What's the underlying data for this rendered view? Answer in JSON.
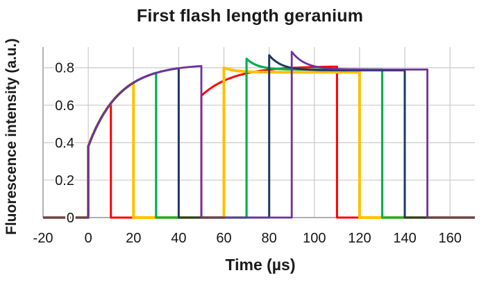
{
  "page": {
    "background": "#FFFFFF"
  },
  "chart_data": {
    "type": "line",
    "title": "First flash length geranium",
    "xlabel": "Time (µs)",
    "ylabel": "Fluorescence intensity (a.u.)",
    "xlim": [
      -20,
      171
    ],
    "ylim": [
      0,
      0.91
    ],
    "xticks": [
      -20,
      0,
      20,
      40,
      60,
      80,
      100,
      120,
      140,
      160
    ],
    "yticks": [
      0,
      0.2,
      0.4,
      0.6,
      0.8
    ],
    "grid": true,
    "legend_position": "none",
    "axis_color": "#A3A3A3",
    "grid_color": "#C9C9C9",
    "text_color": "#1A1A1A",
    "series": [
      {
        "name": "first-flash-10us",
        "color": "#FE0000",
        "width": 3,
        "segments": [
          {
            "shape": "flat",
            "t": [
              -20,
              0
            ],
            "v": 0
          },
          {
            "shape": "exp",
            "t": [
              0,
              10
            ],
            "v0": 0.38,
            "vinf": 0.82,
            "tau": 13.5
          },
          {
            "shape": "flat",
            "t": [
              10,
              50
            ],
            "v": 0
          },
          {
            "shape": "exp",
            "t": [
              50,
              110
            ],
            "v0": 0.65,
            "vinf": 0.808,
            "tau": 14
          },
          {
            "shape": "flat",
            "t": [
              110,
              171
            ],
            "v": 0
          }
        ]
      },
      {
        "name": "first-flash-20us",
        "color": "#FFC000",
        "width": 4,
        "segments": [
          {
            "shape": "flat",
            "t": [
              -20,
              0
            ],
            "v": 0
          },
          {
            "shape": "exp",
            "t": [
              0,
              20
            ],
            "v0": 0.38,
            "vinf": 0.82,
            "tau": 13.5
          },
          {
            "shape": "flat",
            "t": [
              20,
              60
            ],
            "v": 0
          },
          {
            "shape": "exp",
            "t": [
              60,
              120
            ],
            "v0": 0.8,
            "vinf": 0.776,
            "tau": 5
          },
          {
            "shape": "flat",
            "t": [
              120,
              171
            ],
            "v": 0
          }
        ]
      },
      {
        "name": "first-flash-30us",
        "color": "#00B050",
        "width": 3.2,
        "segments": [
          {
            "shape": "flat",
            "t": [
              -20,
              0
            ],
            "v": 0
          },
          {
            "shape": "exp",
            "t": [
              0,
              30
            ],
            "v0": 0.38,
            "vinf": 0.82,
            "tau": 13.5
          },
          {
            "shape": "flat",
            "t": [
              30,
              70
            ],
            "v": 0
          },
          {
            "shape": "exp",
            "t": [
              70,
              130
            ],
            "v0": 0.848,
            "vinf": 0.79,
            "tau": 5
          },
          {
            "shape": "flat",
            "t": [
              130,
              171
            ],
            "v": 0
          }
        ]
      },
      {
        "name": "first-flash-40us",
        "color": "#1F3864",
        "width": 3,
        "segments": [
          {
            "shape": "flat",
            "t": [
              -20,
              0
            ],
            "v": 0
          },
          {
            "shape": "exp",
            "t": [
              0,
              40
            ],
            "v0": 0.38,
            "vinf": 0.82,
            "tau": 13.5
          },
          {
            "shape": "flat",
            "t": [
              40,
              80
            ],
            "v": 0
          },
          {
            "shape": "exp",
            "t": [
              80,
              140
            ],
            "v0": 0.867,
            "vinf": 0.786,
            "tau": 5.5
          },
          {
            "shape": "flat",
            "t": [
              140,
              171
            ],
            "v": 0
          }
        ]
      },
      {
        "name": "first-flash-50us",
        "color": "#7030A0",
        "width": 2.8,
        "segments": [
          {
            "shape": "flat",
            "t": [
              -20,
              0
            ],
            "v": 0
          },
          {
            "shape": "exp",
            "t": [
              0,
              50
            ],
            "v0": 0.38,
            "vinf": 0.82,
            "tau": 13.5
          },
          {
            "shape": "flat",
            "t": [
              50,
              90
            ],
            "v": 0
          },
          {
            "shape": "exp",
            "t": [
              90,
              150
            ],
            "v0": 0.885,
            "vinf": 0.79,
            "tau": 6
          },
          {
            "shape": "flat",
            "t": [
              150,
              171
            ],
            "v": 0
          }
        ]
      }
    ]
  }
}
